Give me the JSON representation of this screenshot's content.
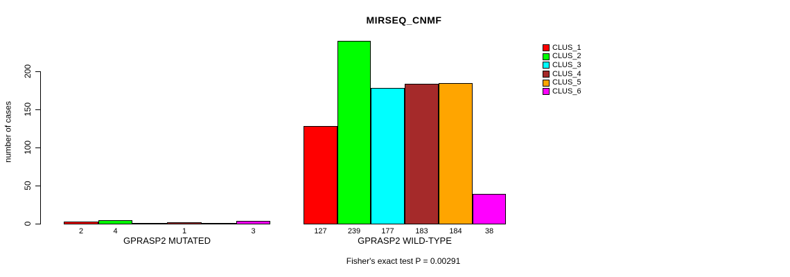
{
  "chart_data": {
    "type": "bar",
    "title": "MIRSEQ_CNMF",
    "ylabel": "number of cases",
    "ylim": [
      0,
      240
    ],
    "yticks": [
      0,
      50,
      100,
      150,
      200
    ],
    "grid": false,
    "legend_position": "right",
    "series": [
      "CLUS_1",
      "CLUS_2",
      "CLUS_3",
      "CLUS_4",
      "CLUS_5",
      "CLUS_6"
    ],
    "series_colors": [
      "#FF0000",
      "#00FF00",
      "#00FFFF",
      "#A52A2A",
      "#FFA500",
      "#FF00FF"
    ],
    "groups": [
      {
        "label": "GPRASP2 MUTATED",
        "values": [
          2,
          4,
          0,
          1,
          0,
          3
        ]
      },
      {
        "label": "GPRASP2 WILD-TYPE",
        "values": [
          127,
          239,
          177,
          183,
          184,
          38
        ]
      }
    ],
    "bar_value_labels_shown": true,
    "footnote": "Fisher's exact test P = 0.00291"
  }
}
